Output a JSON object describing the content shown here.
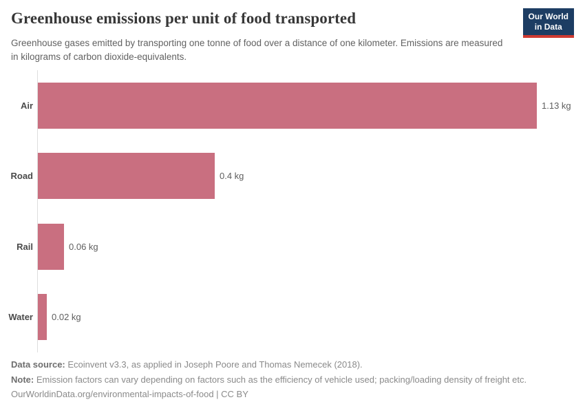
{
  "header": {
    "title": "Greenhouse emissions per unit of food transported",
    "subtitle": "Greenhouse gases emitted by transporting one tonne of food over a distance of one kilometer. Emissions are measured in kilograms of carbon dioxide-equivalents."
  },
  "logo": {
    "line1": "Our World",
    "line2": "in Data"
  },
  "chart_data": {
    "type": "bar",
    "orientation": "horizontal",
    "title": "Greenhouse emissions per unit of food transported",
    "categories": [
      "Air",
      "Road",
      "Rail",
      "Water"
    ],
    "values": [
      1.13,
      0.4,
      0.06,
      0.02
    ],
    "value_labels": [
      "1.13 kg",
      "0.4 kg",
      "0.06 kg",
      "0.02 kg"
    ],
    "unit": "kg",
    "xlim": [
      0,
      1.13
    ],
    "grid": false,
    "legend": false
  },
  "colors": {
    "bar": "#c96f80",
    "axis_line": "#dedede",
    "logo_background": "#1d3d63",
    "logo_stripe": "#cf3a31"
  },
  "footer": {
    "source_label": "Data source:",
    "source_text": " Ecoinvent v3.3, as applied in Joseph Poore and Thomas Nemecek (2018).",
    "note_label": "Note:",
    "note_text": " Emission factors can vary depending on factors such as the efficiency of vehicle used; packing/loading density of freight etc.",
    "citation": "OurWorldinData.org/environmental-impacts-of-food | CC BY"
  }
}
